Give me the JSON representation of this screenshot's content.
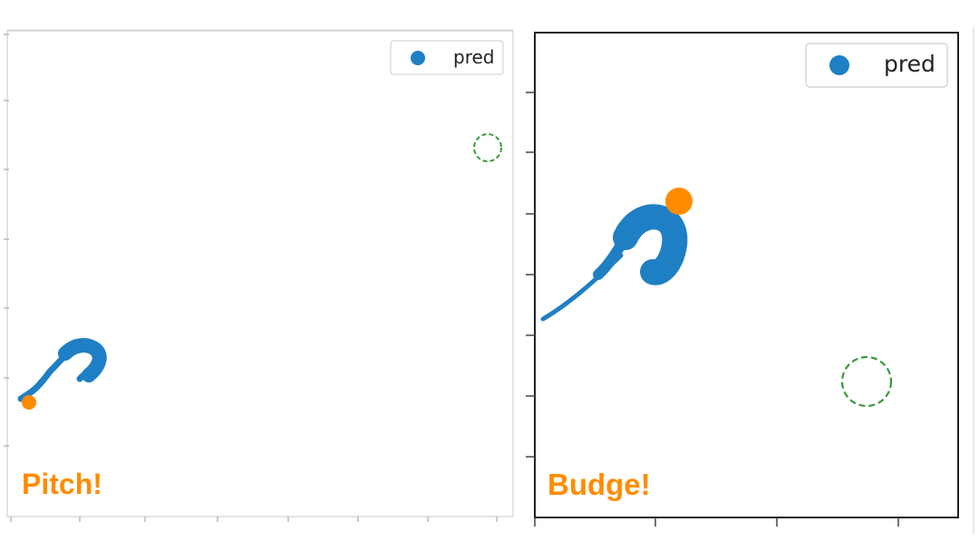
{
  "colors": {
    "pred": "#1f7fc4",
    "agent": "#ff8c00",
    "target": "#3a9a3a",
    "caption": "#ff8c00"
  },
  "chart_data": [
    {
      "type": "scatter",
      "title": "",
      "xlabel": "",
      "ylabel": "",
      "grid": false,
      "legend": {
        "position": "top-right",
        "entries": [
          "pred"
        ]
      },
      "caption": "Pitch!",
      "series": [
        {
          "name": "pred",
          "role": "predicted trajectory",
          "color": "#1f7fc4"
        }
      ],
      "agent_point": {
        "color": "#ff8c00"
      },
      "target_circle": {
        "style": "dashed",
        "color": "#3a9a3a"
      }
    },
    {
      "type": "scatter",
      "title": "",
      "xlabel": "",
      "ylabel": "",
      "grid": false,
      "legend": {
        "position": "top-right",
        "entries": [
          "pred"
        ]
      },
      "caption": "Budge!",
      "series": [
        {
          "name": "pred",
          "role": "predicted trajectory",
          "color": "#1f7fc4"
        }
      ],
      "agent_point": {
        "color": "#ff8c00"
      },
      "target_circle": {
        "style": "dashed",
        "color": "#3a9a3a"
      }
    }
  ]
}
